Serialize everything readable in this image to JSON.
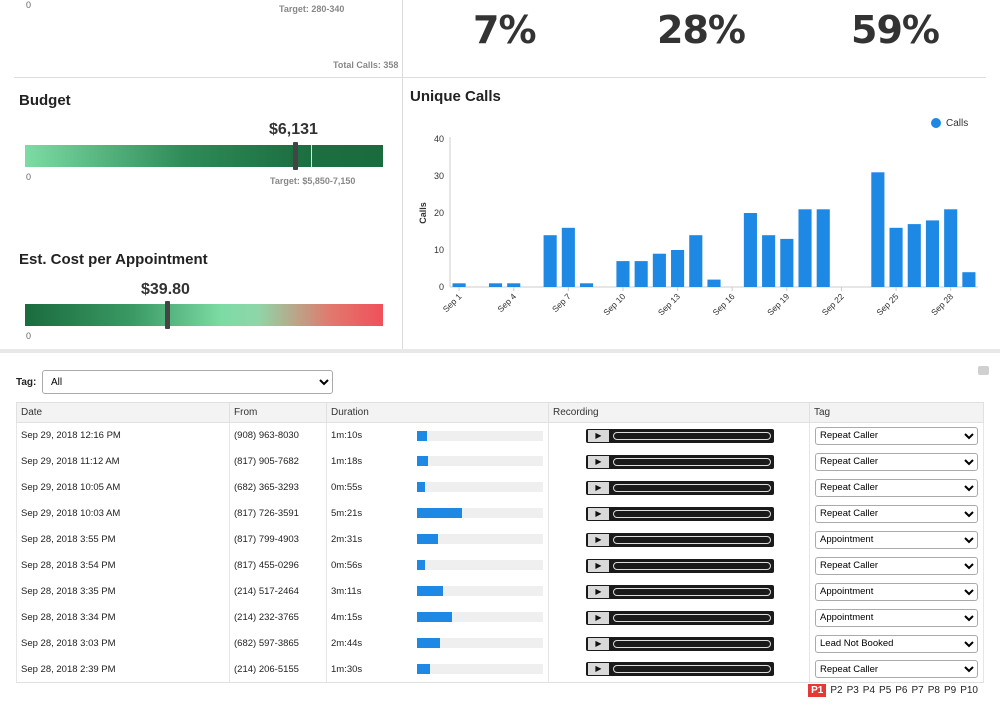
{
  "summary": {
    "axis_zero": "0",
    "target_text": "Target: 280-340",
    "total_calls": "Total Calls: 358",
    "percents": [
      "7%",
      "28%",
      "59%"
    ]
  },
  "budget": {
    "title": "Budget",
    "value": "$6,131",
    "axis_zero": "0",
    "target_text": "Target: $5,850-7,150",
    "level": 0.75
  },
  "cost": {
    "title": "Est. Cost per Appointment",
    "value": "$39.80",
    "axis_zero": "0",
    "level": 0.4
  },
  "chart_data": {
    "type": "bar",
    "title": "Unique Calls",
    "ylabel": "Calls",
    "ylim": [
      0,
      40
    ],
    "yticks": [
      0,
      10,
      20,
      30,
      40
    ],
    "legend": "top-right",
    "color": "#1e88e5",
    "tick_labels": [
      "Sep 1",
      "Sep 4",
      "Sep 7",
      "Sep 10",
      "Sep 13",
      "Sep 16",
      "Sep 19",
      "Sep 22",
      "Sep 25",
      "Sep 28"
    ],
    "series": [
      {
        "name": "Calls",
        "values": [
          1,
          0,
          1,
          1,
          0,
          14,
          16,
          1,
          0,
          7,
          7,
          9,
          10,
          14,
          2,
          0,
          20,
          14,
          13,
          21,
          21,
          0,
          0,
          31,
          16,
          17,
          18,
          21,
          4
        ]
      }
    ]
  },
  "filter": {
    "label": "Tag:",
    "value": "All"
  },
  "table": {
    "headers": [
      "Date",
      "From",
      "Duration",
      "Recording",
      "Tag"
    ],
    "play_symbol": "▶",
    "rows": [
      {
        "date": "Sep 29, 2018 12:16 PM",
        "from": "(908) 963-8030",
        "duration": "1m:10s",
        "fill": 0.08,
        "tag": "Repeat Caller"
      },
      {
        "date": "Sep 29, 2018 11:12 AM",
        "from": "(817) 905-7682",
        "duration": "1m:18s",
        "fill": 0.09,
        "tag": "Repeat Caller"
      },
      {
        "date": "Sep 29, 2018 10:05 AM",
        "from": "(682) 365-3293",
        "duration": "0m:55s",
        "fill": 0.06,
        "tag": "Repeat Caller"
      },
      {
        "date": "Sep 29, 2018 10:03 AM",
        "from": "(817) 726-3591",
        "duration": "5m:21s",
        "fill": 0.36,
        "tag": "Repeat Caller"
      },
      {
        "date": "Sep 28, 2018 3:55 PM",
        "from": "(817) 799-4903",
        "duration": "2m:31s",
        "fill": 0.17,
        "tag": "Appointment"
      },
      {
        "date": "Sep 28, 2018 3:54 PM",
        "from": "(817) 455-0296",
        "duration": "0m:56s",
        "fill": 0.06,
        "tag": "Repeat Caller"
      },
      {
        "date": "Sep 28, 2018 3:35 PM",
        "from": "(214) 517-2464",
        "duration": "3m:11s",
        "fill": 0.21,
        "tag": "Appointment"
      },
      {
        "date": "Sep 28, 2018 3:34 PM",
        "from": "(214) 232-3765",
        "duration": "4m:15s",
        "fill": 0.28,
        "tag": "Appointment"
      },
      {
        "date": "Sep 28, 2018 3:03 PM",
        "from": "(682) 597-3865",
        "duration": "2m:44s",
        "fill": 0.18,
        "tag": "Lead Not Booked"
      },
      {
        "date": "Sep 28, 2018 2:39 PM",
        "from": "(214) 206-5155",
        "duration": "1m:30s",
        "fill": 0.1,
        "tag": "Repeat Caller"
      }
    ]
  },
  "pager": {
    "pages": [
      "P1",
      "P2",
      "P3",
      "P4",
      "P5",
      "P6",
      "P7",
      "P8",
      "P9",
      "P10"
    ],
    "active": "P1"
  }
}
